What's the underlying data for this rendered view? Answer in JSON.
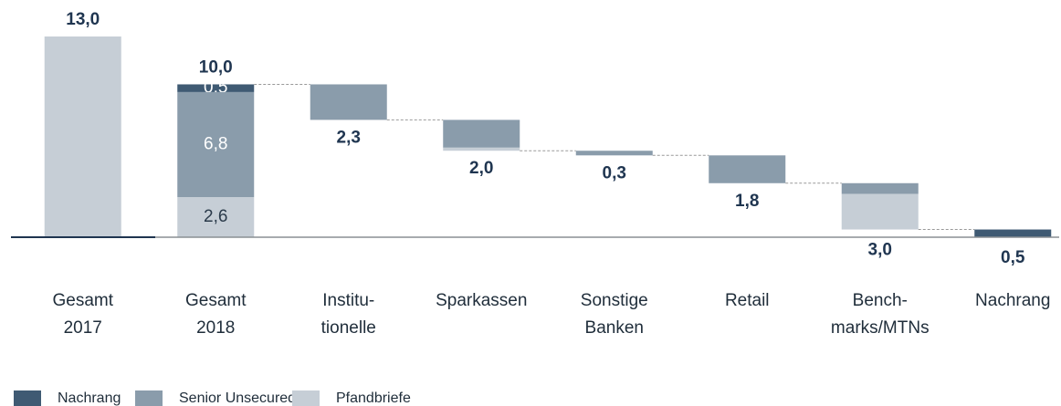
{
  "chart_data": {
    "type": "waterfall",
    "categories": [
      [
        "Gesamt",
        "2017"
      ],
      [
        "Gesamt",
        "2018"
      ],
      [
        "Institu-",
        "tionelle"
      ],
      [
        "Sparkassen"
      ],
      [
        "Sonstige",
        "Banken"
      ],
      [
        "Retail"
      ],
      [
        "Bench-",
        "marks/MTNs"
      ],
      [
        "Nachrang"
      ]
    ],
    "kind": [
      "total",
      "total",
      "step",
      "step",
      "step",
      "step",
      "step",
      "step"
    ],
    "series": [
      {
        "name": "Nachrang",
        "color": "#3f5a73",
        "values": [
          null,
          0.5,
          null,
          null,
          null,
          null,
          null,
          0.5
        ],
        "value_labels": [
          null,
          "0,5",
          null,
          null,
          null,
          null,
          null,
          null
        ]
      },
      {
        "name": "Senior Unsecured",
        "color": "#8a9cab",
        "values": [
          null,
          6.8,
          2.3,
          1.8,
          0.3,
          1.8,
          0.7,
          null
        ],
        "value_labels": [
          null,
          "6,8",
          null,
          null,
          null,
          null,
          null,
          null
        ]
      },
      {
        "name": "Pfandbriefe",
        "color": "#c6ced6",
        "values": [
          13.0,
          2.6,
          null,
          0.2,
          null,
          null,
          2.3,
          null
        ],
        "value_labels": [
          null,
          "2,6",
          null,
          null,
          null,
          null,
          null,
          null
        ]
      }
    ],
    "totals": [
      13.0,
      10.0,
      2.3,
      2.0,
      0.3,
      1.8,
      3.0,
      0.5
    ],
    "total_labels": [
      "13,0",
      "10,0",
      "2,3",
      "2,0",
      "0,3",
      "1,8",
      "3,0",
      "0,5"
    ],
    "ylim": [
      0,
      13
    ]
  }
}
